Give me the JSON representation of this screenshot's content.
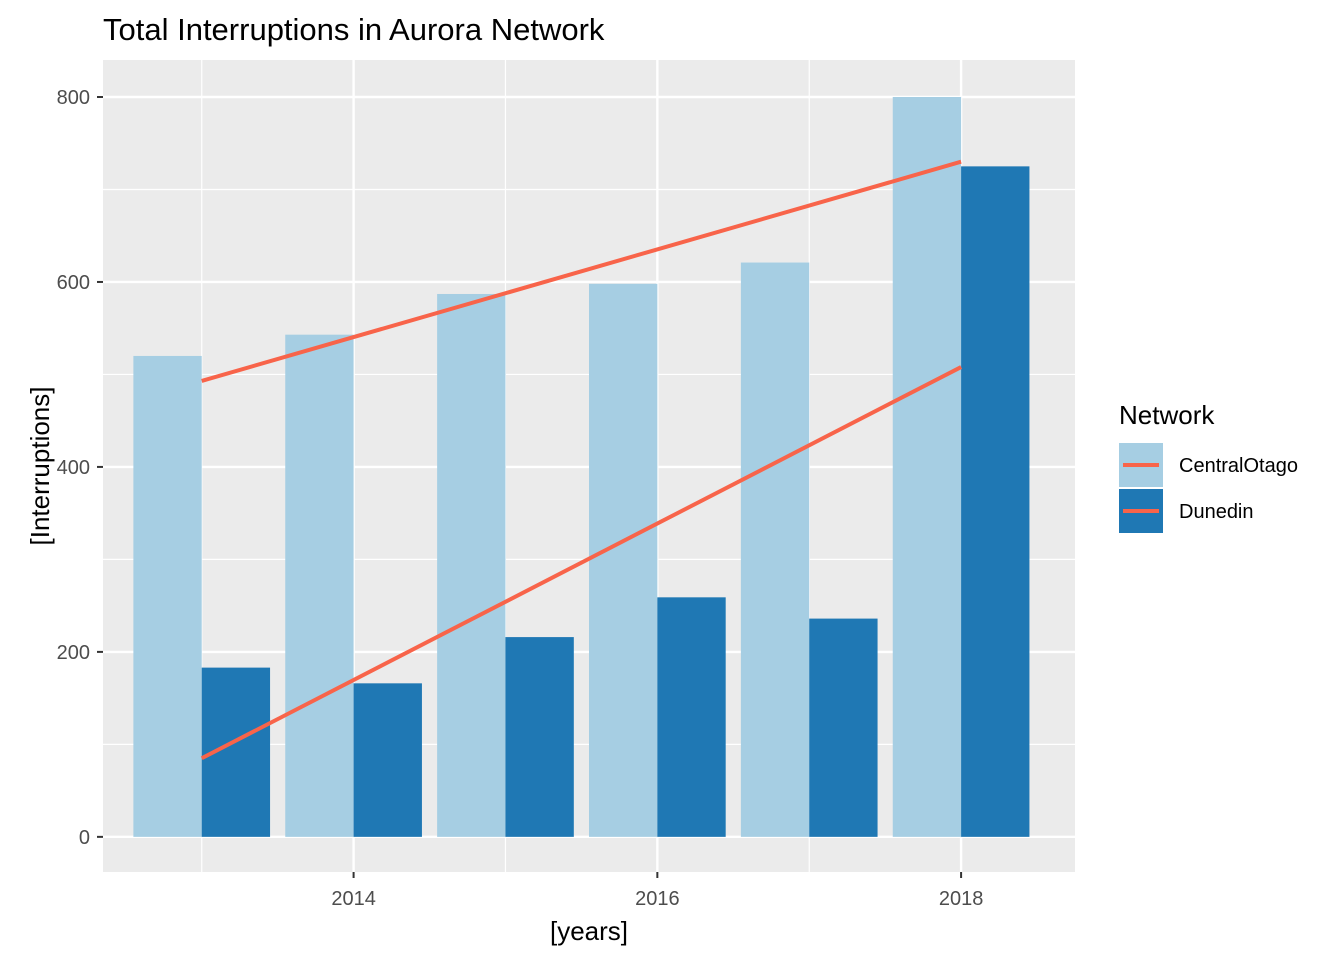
{
  "chart_data": {
    "type": "bar",
    "title": "Total Interruptions in Aurora Network",
    "xlabel": "[years]",
    "ylabel": "[Interruptions]",
    "x": [
      2013,
      2014,
      2015,
      2016,
      2017,
      2018
    ],
    "x_ticks": [
      2014,
      2016,
      2018
    ],
    "y_ticks": [
      0,
      200,
      400,
      600,
      800
    ],
    "xlim": [
      2012.35,
      2018.75
    ],
    "ylim": [
      -38,
      840
    ],
    "grid": true,
    "series": [
      {
        "name": "CentralOtago",
        "values": [
          520,
          543,
          587,
          598,
          621,
          800
        ],
        "color": "#a6cee3"
      },
      {
        "name": "Dunedin",
        "values": [
          183,
          166,
          216,
          259,
          236,
          725
        ],
        "color": "#1f78b4"
      }
    ],
    "trend_lines": [
      {
        "series": "CentralOtago",
        "from": [
          2013,
          493
        ],
        "to": [
          2018,
          730
        ],
        "color": "#f8644a"
      },
      {
        "series": "Dunedin",
        "from": [
          2013,
          85
        ],
        "to": [
          2018,
          508
        ],
        "color": "#f8644a"
      }
    ],
    "legend": {
      "title": "Network",
      "placement": "right",
      "entries": [
        "CentralOtago",
        "Dunedin"
      ]
    }
  }
}
